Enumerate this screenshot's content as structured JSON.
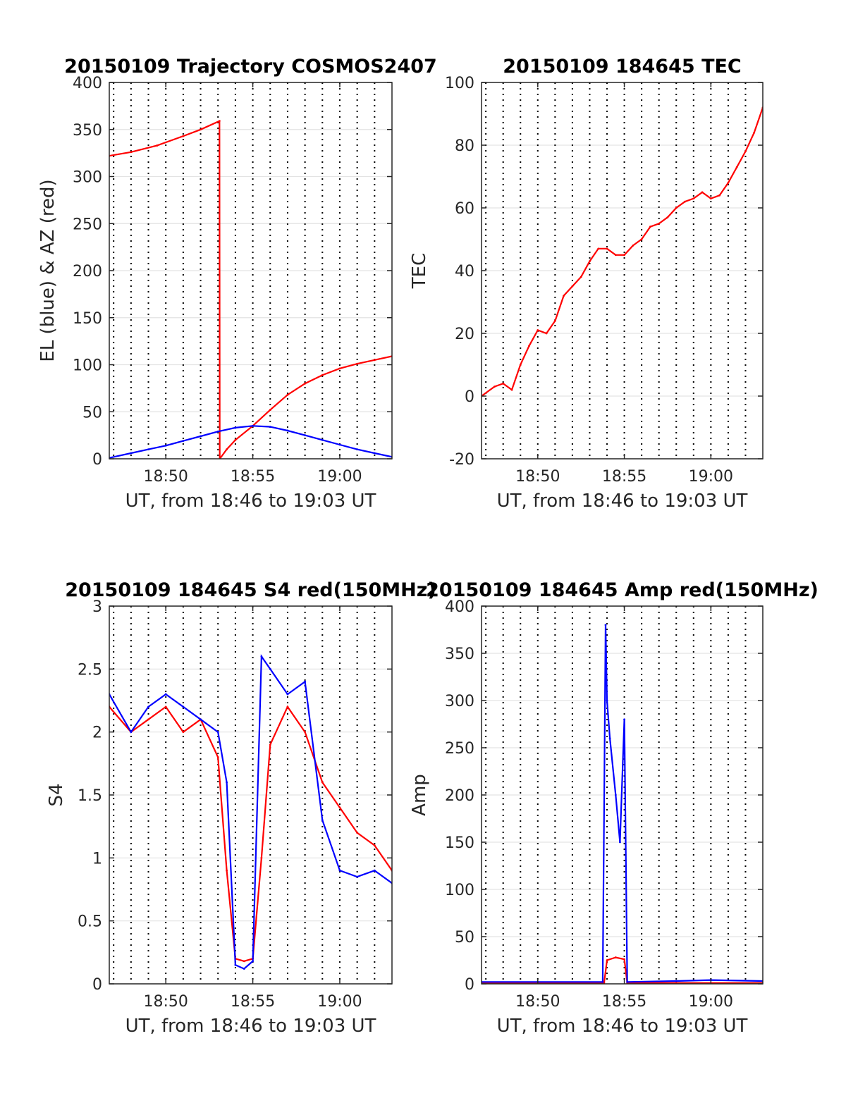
{
  "chart_data": [
    {
      "type": "line",
      "title": "20150109 Trajectory COSMOS2407",
      "xlabel": "UT, from 18:46 to 19:03 UT",
      "ylabel": "EL (blue) & AZ (red)",
      "xlim": [
        "18:46:45",
        "19:03:00"
      ],
      "ylim": [
        0,
        400
      ],
      "x_ticks": [
        "18:50",
        "18:55",
        "19:00"
      ],
      "y_ticks": [
        "0",
        "50",
        "100",
        "150",
        "200",
        "250",
        "300",
        "350",
        "400"
      ],
      "grid": true,
      "series": [
        {
          "color": "#ff0000",
          "x": [
            "18:46:45",
            "18:48:00",
            "18:49:30",
            "18:51:00",
            "18:52:00",
            "18:53:05",
            "18:53:06",
            "18:53:30",
            "18:54:00",
            "18:55:00",
            "18:56:00",
            "18:57:00",
            "18:58:00",
            "18:59:00",
            "19:00:00",
            "19:01:00",
            "19:02:00",
            "19:03:00"
          ],
          "values": [
            322,
            326,
            333,
            343,
            350,
            359,
            0,
            10,
            20,
            35,
            52,
            68,
            80,
            89,
            96,
            101,
            105,
            109
          ]
        },
        {
          "color": "#0000ff",
          "x": [
            "18:46:45",
            "18:48:00",
            "18:49:00",
            "18:50:00",
            "18:51:00",
            "18:52:00",
            "18:53:00",
            "18:54:00",
            "18:55:00",
            "18:56:00",
            "18:57:00",
            "18:58:00",
            "18:59:00",
            "19:00:00",
            "19:01:00",
            "19:02:00",
            "19:03:00"
          ],
          "values": [
            1,
            6,
            10,
            14,
            19,
            24,
            29,
            33,
            35,
            34,
            30,
            25,
            20,
            15,
            10,
            6,
            2
          ]
        }
      ]
    },
    {
      "type": "line",
      "title": "20150109 184645 TEC",
      "xlabel": "UT, from 18:46 to 19:03 UT",
      "ylabel": "TEC",
      "xlim": [
        "18:46:45",
        "19:03:00"
      ],
      "ylim": [
        -20,
        100
      ],
      "x_ticks": [
        "18:50",
        "18:55",
        "19:00"
      ],
      "y_ticks": [
        "-20",
        "0",
        "20",
        "40",
        "60",
        "80",
        "100"
      ],
      "grid": true,
      "series": [
        {
          "color": "#ff0000",
          "x": [
            "18:46:45",
            "18:47:30",
            "18:48:00",
            "18:48:30",
            "18:49:00",
            "18:49:30",
            "18:50:00",
            "18:50:30",
            "18:51:00",
            "18:51:30",
            "18:52:00",
            "18:52:30",
            "18:53:00",
            "18:53:30",
            "18:54:00",
            "18:54:30",
            "18:55:00",
            "18:55:30",
            "18:56:00",
            "18:56:30",
            "18:57:00",
            "18:57:30",
            "18:58:00",
            "18:58:30",
            "18:59:00",
            "18:59:30",
            "19:00:00",
            "19:00:30",
            "19:01:00",
            "19:01:30",
            "19:02:00",
            "19:02:30",
            "19:03:00"
          ],
          "values": [
            0,
            3,
            4,
            2,
            10,
            16,
            21,
            20,
            24,
            32,
            35,
            38,
            43,
            47,
            47,
            45,
            45,
            48,
            50,
            54,
            55,
            57,
            60,
            62,
            63,
            65,
            63,
            64,
            68,
            73,
            78,
            84,
            92
          ]
        }
      ]
    },
    {
      "type": "line",
      "title": "20150109 184645 S4 red(150MHz)",
      "xlabel": "UT, from 18:46 to 19:03 UT",
      "ylabel": "S4",
      "xlim": [
        "18:46:45",
        "19:03:00"
      ],
      "ylim": [
        0,
        3
      ],
      "x_ticks": [
        "18:50",
        "18:55",
        "19:00"
      ],
      "y_ticks": [
        "0",
        "0.5",
        "1",
        "1.5",
        "2",
        "2.5",
        "3"
      ],
      "grid": true,
      "series": [
        {
          "color": "#ff0000",
          "x": [
            "18:46:45",
            "18:48:00",
            "18:49:00",
            "18:50:00",
            "18:51:00",
            "18:52:00",
            "18:53:00",
            "18:53:30",
            "18:54:00",
            "18:54:30",
            "18:55:00",
            "18:55:30",
            "18:56:00",
            "18:57:00",
            "18:58:00",
            "18:59:00",
            "19:00:00",
            "19:01:00",
            "19:02:00",
            "19:03:00"
          ],
          "values": [
            2.2,
            2.0,
            2.1,
            2.2,
            2.0,
            2.1,
            1.8,
            0.9,
            0.2,
            0.18,
            0.2,
            1.0,
            1.9,
            2.2,
            2.0,
            1.6,
            1.4,
            1.2,
            1.1,
            0.9
          ]
        },
        {
          "color": "#0000ff",
          "x": [
            "18:46:45",
            "18:48:00",
            "18:49:00",
            "18:50:00",
            "18:51:00",
            "18:52:00",
            "18:53:00",
            "18:53:30",
            "18:54:00",
            "18:54:30",
            "18:55:00",
            "18:55:30",
            "18:56:00",
            "18:57:00",
            "18:58:00",
            "18:59:00",
            "19:00:00",
            "19:01:00",
            "19:02:00",
            "19:03:00"
          ],
          "values": [
            2.3,
            2.0,
            2.2,
            2.3,
            2.2,
            2.1,
            2.0,
            1.6,
            0.15,
            0.12,
            0.18,
            2.6,
            2.5,
            2.3,
            2.4,
            1.3,
            0.9,
            0.85,
            0.9,
            0.8
          ]
        }
      ]
    },
    {
      "type": "line",
      "title": "20150109 184645 Amp red(150MHz)",
      "xlabel": "UT, from 18:46 to 19:03 UT",
      "ylabel": "Amp",
      "xlim": [
        "18:46:45",
        "19:03:00"
      ],
      "ylim": [
        0,
        400
      ],
      "x_ticks": [
        "18:50",
        "18:55",
        "19:00"
      ],
      "y_ticks": [
        "0",
        "50",
        "100",
        "150",
        "200",
        "250",
        "300",
        "350",
        "400"
      ],
      "grid": true,
      "series": [
        {
          "color": "#ff0000",
          "x": [
            "18:46:45",
            "18:50:00",
            "18:53:50",
            "18:54:00",
            "18:54:30",
            "18:55:00",
            "18:55:10",
            "18:58:00",
            "19:03:00"
          ],
          "values": [
            1,
            1,
            1,
            25,
            28,
            26,
            1,
            1,
            1
          ]
        },
        {
          "color": "#0000ff",
          "x": [
            "18:46:45",
            "18:50:00",
            "18:53:45",
            "18:53:55",
            "18:54:00",
            "18:54:10",
            "18:54:30",
            "18:54:45",
            "18:55:00",
            "18:55:10",
            "18:58:00",
            "19:00:00",
            "19:03:00"
          ],
          "values": [
            2,
            2,
            2,
            380,
            300,
            260,
            200,
            150,
            280,
            2,
            3,
            4,
            3
          ]
        }
      ]
    }
  ]
}
